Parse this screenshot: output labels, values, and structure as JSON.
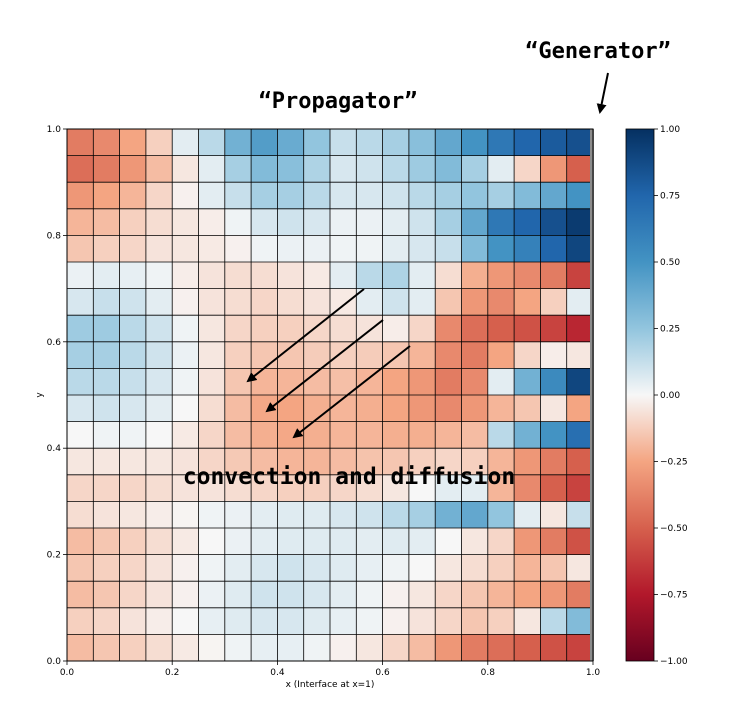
{
  "chart_data": {
    "type": "heatmap",
    "xlabel": "x (Interface at x=1)",
    "ylabel": "y",
    "xlim": [
      0.0,
      1.0
    ],
    "ylim": [
      0.0,
      1.0
    ],
    "x_ticks": [
      "0.0",
      "0.2",
      "0.4",
      "0.6",
      "0.8",
      "1.0"
    ],
    "y_ticks": [
      "0.0",
      "0.2",
      "0.4",
      "0.6",
      "0.8",
      "1.0"
    ],
    "colorbar": {
      "range": [
        -1.0,
        1.0
      ],
      "ticks": [
        "1.00",
        "0.75",
        "0.50",
        "0.25",
        "0.00",
        "−0.25",
        "−0.50",
        "−0.75",
        "−1.00"
      ],
      "colormap": "RdBu"
    },
    "grid_rows_top_to_bottom": [
      [
        -0.4,
        -0.35,
        -0.25,
        -0.12,
        0.05,
        0.15,
        0.35,
        0.45,
        0.38,
        0.25,
        0.12,
        0.15,
        0.2,
        0.28,
        0.4,
        0.5,
        0.65,
        0.75,
        0.8,
        0.85
      ],
      [
        -0.45,
        -0.4,
        -0.3,
        -0.18,
        -0.05,
        0.05,
        0.2,
        0.3,
        0.28,
        0.18,
        0.08,
        0.1,
        0.15,
        0.22,
        0.3,
        0.2,
        0.05,
        -0.1,
        -0.3,
        -0.5
      ],
      [
        -0.3,
        -0.25,
        -0.2,
        -0.1,
        -0.02,
        0.05,
        0.12,
        0.2,
        0.2,
        0.15,
        0.08,
        0.08,
        0.1,
        0.15,
        0.2,
        0.25,
        0.2,
        0.3,
        0.4,
        0.5
      ],
      [
        -0.2,
        -0.18,
        -0.12,
        -0.08,
        -0.05,
        -0.03,
        0.02,
        0.08,
        0.1,
        0.08,
        0.03,
        0.03,
        0.05,
        0.1,
        0.2,
        0.4,
        0.65,
        0.75,
        0.85,
        0.95
      ],
      [
        -0.15,
        -0.12,
        -0.1,
        -0.06,
        -0.05,
        -0.04,
        -0.02,
        0.02,
        0.03,
        0.03,
        0.02,
        0.02,
        0.05,
        0.08,
        0.12,
        0.3,
        0.5,
        0.6,
        0.75,
        0.9
      ],
      [
        0.03,
        0.05,
        0.04,
        0.02,
        -0.03,
        -0.06,
        -0.08,
        -0.08,
        -0.06,
        -0.04,
        0.05,
        0.15,
        0.18,
        0.05,
        -0.08,
        -0.22,
        -0.3,
        -0.35,
        -0.4,
        -0.6
      ],
      [
        0.08,
        0.12,
        0.1,
        0.05,
        -0.02,
        -0.06,
        -0.08,
        -0.1,
        -0.08,
        -0.06,
        -0.04,
        0.05,
        0.1,
        0.05,
        -0.15,
        -0.3,
        -0.35,
        -0.25,
        -0.12,
        0.05
      ],
      [
        0.22,
        0.22,
        0.15,
        0.1,
        0.02,
        -0.05,
        -0.1,
        -0.12,
        -0.12,
        -0.1,
        -0.08,
        -0.06,
        -0.03,
        -0.1,
        -0.35,
        -0.45,
        -0.5,
        -0.55,
        -0.6,
        -0.7
      ],
      [
        0.2,
        0.2,
        0.15,
        0.1,
        0.03,
        -0.05,
        -0.12,
        -0.15,
        -0.15,
        -0.13,
        -0.12,
        -0.13,
        -0.15,
        -0.2,
        -0.35,
        -0.4,
        -0.25,
        -0.1,
        -0.03,
        -0.05
      ],
      [
        0.15,
        0.15,
        0.12,
        0.08,
        0.02,
        -0.06,
        -0.15,
        -0.2,
        -0.2,
        -0.18,
        -0.17,
        -0.2,
        -0.25,
        -0.3,
        -0.4,
        -0.35,
        0.05,
        0.35,
        0.55,
        0.9
      ],
      [
        0.08,
        0.1,
        0.08,
        0.05,
        0.0,
        -0.08,
        -0.18,
        -0.24,
        -0.25,
        -0.22,
        -0.2,
        -0.22,
        -0.25,
        -0.3,
        -0.35,
        -0.3,
        -0.2,
        -0.15,
        -0.05,
        -0.25
      ],
      [
        0.0,
        0.02,
        0.02,
        0.0,
        -0.04,
        -0.1,
        -0.18,
        -0.22,
        -0.24,
        -0.22,
        -0.2,
        -0.2,
        -0.22,
        -0.22,
        -0.2,
        -0.18,
        0.15,
        0.35,
        0.5,
        0.7
      ],
      [
        -0.05,
        -0.05,
        -0.05,
        -0.05,
        -0.06,
        -0.1,
        -0.14,
        -0.18,
        -0.2,
        -0.2,
        -0.18,
        -0.16,
        -0.15,
        -0.12,
        -0.1,
        -0.12,
        -0.2,
        -0.3,
        -0.4,
        -0.5
      ],
      [
        -0.1,
        -0.1,
        -0.1,
        -0.08,
        -0.06,
        -0.06,
        -0.08,
        -0.1,
        -0.12,
        -0.12,
        -0.1,
        -0.08,
        -0.05,
        0.0,
        0.05,
        0.05,
        -0.2,
        -0.35,
        -0.5,
        -0.6
      ],
      [
        -0.08,
        -0.06,
        -0.05,
        -0.03,
        -0.01,
        0.02,
        0.03,
        0.05,
        0.06,
        0.06,
        0.08,
        0.1,
        0.15,
        0.2,
        0.35,
        0.4,
        0.25,
        0.05,
        -0.05,
        0.12
      ],
      [
        -0.18,
        -0.15,
        -0.12,
        -0.08,
        -0.04,
        0.0,
        0.03,
        0.05,
        0.06,
        0.06,
        0.06,
        0.05,
        0.06,
        0.05,
        0.0,
        -0.05,
        -0.1,
        -0.3,
        -0.4,
        -0.55
      ],
      [
        -0.15,
        -0.12,
        -0.1,
        -0.06,
        -0.02,
        0.02,
        0.05,
        0.08,
        0.1,
        0.08,
        0.06,
        0.04,
        0.02,
        0.0,
        -0.05,
        -0.08,
        -0.12,
        -0.2,
        -0.15,
        -0.05
      ],
      [
        -0.18,
        -0.15,
        -0.1,
        -0.06,
        -0.02,
        0.03,
        0.06,
        0.1,
        0.1,
        0.08,
        0.05,
        0.02,
        -0.02,
        -0.05,
        -0.1,
        -0.15,
        -0.2,
        -0.25,
        -0.3,
        -0.4
      ],
      [
        -0.12,
        -0.1,
        -0.06,
        -0.03,
        0.0,
        0.04,
        0.06,
        0.08,
        0.08,
        0.06,
        0.04,
        0.02,
        -0.02,
        -0.06,
        -0.1,
        -0.15,
        -0.12,
        -0.05,
        0.15,
        0.3
      ],
      [
        -0.18,
        -0.15,
        -0.12,
        -0.08,
        -0.04,
        -0.01,
        0.02,
        0.04,
        0.04,
        0.02,
        -0.02,
        -0.05,
        -0.1,
        -0.18,
        -0.3,
        -0.4,
        -0.45,
        -0.5,
        -0.55,
        -0.6
      ]
    ]
  },
  "annotations": {
    "generator": "“Generator”",
    "propagator": "“Propagator”",
    "convection": "convection and diffusion"
  }
}
